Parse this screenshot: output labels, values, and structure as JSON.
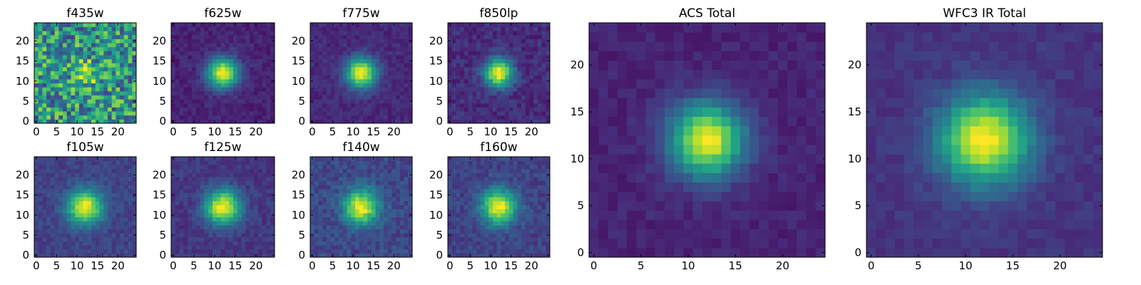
{
  "chart_data": [
    {
      "type": "heatmap",
      "title": "f435w",
      "colormap": "viridis",
      "peak": [
        12,
        12
      ],
      "spread": 1.9,
      "noise": 0.32,
      "background": 0.52,
      "xticks": [
        0,
        5,
        10,
        15,
        20
      ],
      "yticks": [
        0,
        5,
        10,
        15,
        20
      ],
      "xlim": [
        0,
        24
      ],
      "ylim": [
        0,
        24
      ]
    },
    {
      "type": "heatmap",
      "title": "f625w",
      "colormap": "viridis",
      "peak": [
        12,
        12
      ],
      "spread": 2.6,
      "noise": 0.05,
      "background": 0.1,
      "xticks": [
        0,
        5,
        10,
        15,
        20
      ],
      "yticks": [
        0,
        5,
        10,
        15,
        20
      ],
      "xlim": [
        0,
        24
      ],
      "ylim": [
        0,
        24
      ]
    },
    {
      "type": "heatmap",
      "title": "f775w",
      "colormap": "viridis",
      "peak": [
        12,
        12
      ],
      "spread": 2.6,
      "noise": 0.05,
      "background": 0.12,
      "xticks": [
        0,
        5,
        10,
        15,
        20
      ],
      "yticks": [
        0,
        5,
        10,
        15,
        20
      ],
      "xlim": [
        0,
        24
      ],
      "ylim": [
        0,
        24
      ]
    },
    {
      "type": "heatmap",
      "title": "f850lp",
      "colormap": "viridis",
      "peak": [
        12,
        12
      ],
      "spread": 2.4,
      "noise": 0.07,
      "background": 0.13,
      "xticks": [
        0,
        5,
        10,
        15,
        20
      ],
      "yticks": [
        0,
        5,
        10,
        15,
        20
      ],
      "xlim": [
        0,
        24
      ],
      "ylim": [
        0,
        24
      ]
    },
    {
      "type": "heatmap",
      "title": "f105w",
      "colormap": "viridis",
      "peak": [
        12,
        12
      ],
      "spread": 3.0,
      "noise": 0.06,
      "background": 0.2,
      "xticks": [
        0,
        5,
        10,
        15,
        20
      ],
      "yticks": [
        0,
        5,
        10,
        15,
        20
      ],
      "xlim": [
        0,
        24
      ],
      "ylim": [
        0,
        24
      ]
    },
    {
      "type": "heatmap",
      "title": "f125w",
      "colormap": "viridis",
      "peak": [
        12,
        12
      ],
      "spread": 3.0,
      "noise": 0.06,
      "background": 0.16,
      "xticks": [
        0,
        5,
        10,
        15,
        20
      ],
      "yticks": [
        0,
        5,
        10,
        15,
        20
      ],
      "xlim": [
        0,
        24
      ],
      "ylim": [
        0,
        24
      ]
    },
    {
      "type": "heatmap",
      "title": "f140w",
      "colormap": "viridis",
      "peak": [
        12,
        12
      ],
      "spread": 2.9,
      "noise": 0.08,
      "background": 0.22,
      "xticks": [
        0,
        5,
        10,
        15,
        20
      ],
      "yticks": [
        0,
        5,
        10,
        15,
        20
      ],
      "xlim": [
        0,
        24
      ],
      "ylim": [
        0,
        24
      ]
    },
    {
      "type": "heatmap",
      "title": "f160w",
      "colormap": "viridis",
      "peak": [
        12,
        12
      ],
      "spread": 3.0,
      "noise": 0.07,
      "background": 0.2,
      "xticks": [
        0,
        5,
        10,
        15,
        20
      ],
      "yticks": [
        0,
        5,
        10,
        15,
        20
      ],
      "xlim": [
        0,
        24
      ],
      "ylim": [
        0,
        24
      ]
    },
    {
      "type": "heatmap",
      "title": "ACS Total",
      "colormap": "viridis",
      "peak": [
        12,
        12
      ],
      "spread": 2.7,
      "noise": 0.04,
      "background": 0.1,
      "xticks": [
        0,
        5,
        10,
        15,
        20
      ],
      "yticks": [
        0,
        5,
        10,
        15,
        20
      ],
      "xlim": [
        0,
        24
      ],
      "ylim": [
        0,
        24
      ]
    },
    {
      "type": "heatmap",
      "title": "WFC3 IR Total",
      "colormap": "viridis",
      "peak": [
        12,
        12
      ],
      "spread": 3.3,
      "noise": 0.04,
      "background": 0.15,
      "xticks": [
        0,
        5,
        10,
        15,
        20
      ],
      "yticks": [
        0,
        5,
        10,
        15,
        20
      ],
      "xlim": [
        0,
        24
      ],
      "ylim": [
        0,
        24
      ]
    }
  ]
}
